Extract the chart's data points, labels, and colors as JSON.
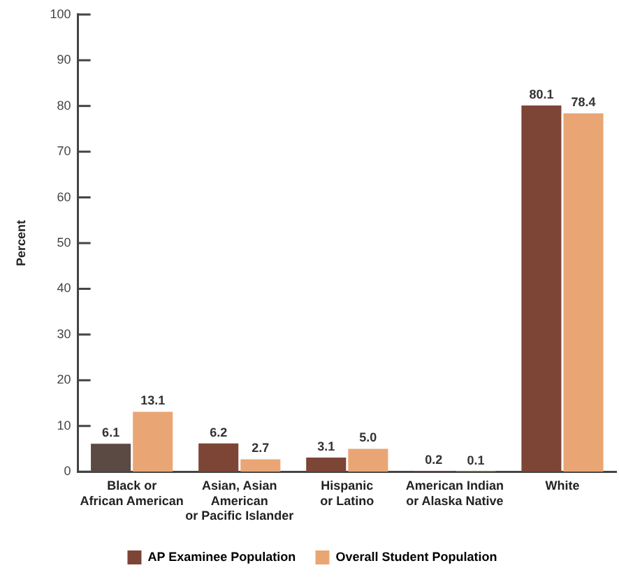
{
  "chart_data": {
    "type": "bar",
    "categories": [
      "Black or\nAfrican American",
      "Asian, Asian\nAmerican\nor Pacific Islander",
      "Hispanic\nor Latino",
      "American Indian\nor Alaska Native",
      "White"
    ],
    "series": [
      {
        "name": "AP Examinee Population",
        "color": "#7d4536",
        "colors": [
          "#5b4943",
          "#7d4536",
          "#7d4536",
          "#7d4536",
          "#7d4536"
        ],
        "values": [
          6.1,
          6.2,
          3.1,
          0.2,
          80.1
        ],
        "value_labels": [
          "6.1",
          "6.2",
          "3.1",
          "0.2",
          "80.1"
        ]
      },
      {
        "name": "Overall Student Population",
        "color": "#e9a674",
        "values": [
          13.1,
          2.7,
          5.0,
          0.1,
          78.4
        ],
        "value_labels": [
          "13.1",
          "2.7",
          "5.0",
          "0.1",
          "78.4"
        ]
      }
    ],
    "ylabel": "Percent",
    "ylim": [
      0,
      100
    ],
    "yticks": [
      0,
      10,
      20,
      30,
      40,
      50,
      60,
      70,
      80,
      90,
      100
    ],
    "legend": "bottom"
  }
}
